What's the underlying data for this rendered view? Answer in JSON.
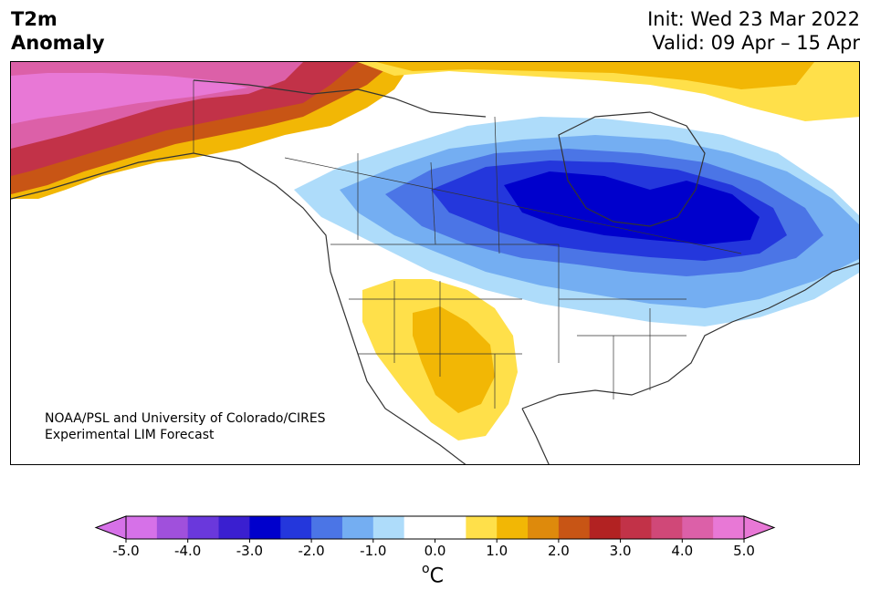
{
  "header": {
    "title_line1": "T2m",
    "title_line2": "Anomaly",
    "init": "Init: Wed 23 Mar 2022",
    "valid": "Valid: 09 Apr – 15 Apr"
  },
  "credit": {
    "line1": "NOAA/PSL and University of Colorado/CIRES",
    "line2": "Experimental LIM Forecast"
  },
  "colorbar": {
    "unit_sup": "o",
    "unit": "C",
    "ticks": [
      "-5.0",
      "-4.0",
      "-3.0",
      "-2.0",
      "-1.0",
      "0.0",
      "1.0",
      "2.0",
      "3.0",
      "4.0",
      "5.0"
    ],
    "colors": [
      "#d671e8",
      "#a050dc",
      "#6a38dc",
      "#3a1fd0",
      "#0000cc",
      "#2437dc",
      "#4b75e6",
      "#74aef2",
      "#aedcfa",
      "#ffffff",
      "#ffffff",
      "#ffe04a",
      "#f2b705",
      "#de8a0c",
      "#c85515",
      "#b22222",
      "#c23248",
      "#d04878",
      "#dc60a8",
      "#e878d6"
    ]
  }
}
